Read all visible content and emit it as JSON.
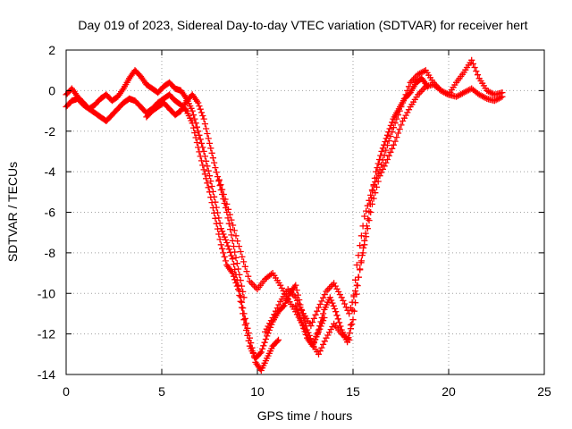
{
  "chart_data": {
    "type": "scatter",
    "title": "Day 019 of 2023, Sidereal Day-to-day VTEC variation (SDTVAR) for receiver hert",
    "xlabel": "GPS time / hours",
    "ylabel": "SDTVAR / TECUs",
    "xlim": [
      0,
      25
    ],
    "ylim": [
      -14,
      2
    ],
    "xticks": [
      0,
      5,
      10,
      15,
      20,
      25
    ],
    "yticks": [
      -14,
      -12,
      -10,
      -8,
      -6,
      -4,
      -2,
      0,
      2
    ],
    "grid": true,
    "marker": "+",
    "color": "#ff0000",
    "series": [
      {
        "x": [
          0.0,
          0.3,
          0.6,
          0.9,
          1.2,
          1.5,
          1.8,
          2.1,
          2.4,
          2.7,
          3.0,
          3.3,
          3.6,
          3.9,
          4.2,
          4.5,
          4.8,
          5.1,
          5.4,
          5.7,
          6.0,
          6.3,
          6.6,
          6.9,
          7.2,
          7.5,
          7.8,
          8.1,
          8.4,
          8.7,
          9.0,
          9.3,
          9.6,
          9.9,
          10.2,
          10.5,
          10.8,
          11.1
        ],
        "y": [
          -0.2,
          0.1,
          -0.3,
          -0.6,
          -0.9,
          -0.7,
          -0.4,
          -0.2,
          -0.5,
          -0.3,
          0.1,
          0.6,
          1.0,
          0.7,
          0.3,
          0.1,
          -0.1,
          0.2,
          0.4,
          0.1,
          0.0,
          -0.4,
          -1.0,
          -2.0,
          -3.0,
          -4.2,
          -5.5,
          -6.8,
          -7.5,
          -8.3,
          -9.6,
          -11.0,
          -12.2,
          -13.4,
          -13.8,
          -13.2,
          -12.6,
          -12.3
        ]
      },
      {
        "x": [
          0.0,
          0.3,
          0.6,
          0.9,
          1.2,
          1.5,
          1.8,
          2.1,
          2.4,
          2.7,
          3.0,
          3.3,
          3.6,
          3.9,
          4.2,
          4.5,
          4.8,
          5.1,
          5.4,
          5.7,
          6.0,
          6.3,
          6.6,
          6.9,
          7.2,
          7.5,
          7.8,
          8.1,
          8.4,
          8.7,
          9.0,
          9.3,
          9.6,
          9.9,
          10.2,
          10.5,
          10.8,
          11.1,
          11.4,
          11.7,
          12.0,
          12.3,
          12.6,
          12.9,
          13.2,
          13.5
        ],
        "y": [
          -0.8,
          -0.5,
          -0.4,
          -0.7,
          -0.9,
          -1.1,
          -1.3,
          -1.5,
          -1.2,
          -0.9,
          -0.6,
          -0.4,
          -0.5,
          -0.8,
          -1.1,
          -0.9,
          -0.6,
          -0.4,
          -0.2,
          -0.5,
          -0.7,
          -1.0,
          -1.6,
          -2.8,
          -3.9,
          -5.0,
          -6.3,
          -7.6,
          -8.6,
          -9.0,
          -9.8,
          -11.3,
          -12.6,
          -13.2,
          -12.9,
          -12.1,
          -11.4,
          -10.9,
          -10.6,
          -10.0,
          -9.6,
          -10.8,
          -11.8,
          -12.5,
          -11.9,
          -11.2
        ]
      },
      {
        "x": [
          4.2,
          4.5,
          4.8,
          5.1,
          5.4,
          5.7,
          6.0,
          6.3,
          6.6,
          6.9,
          7.2,
          7.5,
          7.8,
          8.1,
          8.4,
          8.7,
          9.0,
          9.3
        ],
        "y": [
          -1.3,
          -1.0,
          -0.8,
          -0.6,
          -0.9,
          -1.2,
          -1.0,
          -0.5,
          -0.2,
          -0.6,
          -1.4,
          -2.6,
          -3.8,
          -4.9,
          -6.0,
          -7.4,
          -8.8,
          -10.2
        ]
      },
      {
        "x": [
          8.0,
          8.4,
          8.8,
          9.2,
          9.6,
          10.0,
          10.4,
          10.8,
          11.2,
          11.6,
          12.0,
          12.4,
          12.8,
          13.2,
          13.6,
          14.0,
          14.4,
          14.8,
          15.2,
          15.6,
          16.0,
          16.4,
          16.8,
          17.2,
          17.6,
          18.0,
          18.4,
          18.8,
          19.2,
          19.6,
          20.0,
          20.4,
          20.8,
          21.2,
          21.6,
          22.0,
          22.4,
          22.8
        ],
        "y": [
          -4.4,
          -5.6,
          -6.9,
          -8.2,
          -9.4,
          -9.8,
          -9.3,
          -9.0,
          -9.6,
          -10.3,
          -10.9,
          -11.6,
          -12.4,
          -13.0,
          -12.2,
          -11.5,
          -12.0,
          -12.3,
          -8.6,
          -6.2,
          -4.9,
          -3.9,
          -2.7,
          -1.6,
          -0.6,
          0.4,
          0.8,
          1.0,
          0.4,
          0.0,
          -0.2,
          0.4,
          0.9,
          1.5,
          0.6,
          0.0,
          -0.2,
          -0.1
        ]
      },
      {
        "x": [
          10.4,
          10.8,
          11.2,
          11.6,
          12.0,
          12.4,
          12.8,
          13.2,
          13.6,
          14.0,
          14.4,
          14.8,
          15.2,
          15.6,
          16.0,
          16.4,
          16.8,
          17.2,
          17.6,
          18.0,
          18.4,
          18.8,
          19.2,
          19.6,
          20.0,
          20.4,
          20.8,
          21.2,
          21.6,
          22.0,
          22.4,
          22.8
        ],
        "y": [
          -11.9,
          -11.2,
          -10.4,
          -9.8,
          -10.2,
          -11.0,
          -11.6,
          -10.7,
          -9.9,
          -9.5,
          -10.2,
          -11.0,
          -9.6,
          -7.6,
          -5.6,
          -4.2,
          -3.4,
          -2.5,
          -1.5,
          -0.8,
          -0.2,
          0.2,
          0.3,
          0.0,
          -0.2,
          -0.3,
          -0.1,
          0.1,
          -0.2,
          -0.4,
          -0.5,
          -0.3
        ]
      },
      {
        "x": [
          12.0,
          12.3,
          12.6,
          12.9,
          13.2,
          13.5,
          13.8,
          14.1,
          14.4,
          14.7,
          15.0,
          15.3,
          15.6,
          15.9,
          16.2,
          16.5,
          16.8,
          17.1,
          17.4,
          17.7,
          18.0,
          18.3,
          18.6,
          18.9
        ],
        "y": [
          -10.6,
          -11.4,
          -12.2,
          -12.6,
          -11.8,
          -10.8,
          -10.2,
          -10.9,
          -11.8,
          -12.4,
          -11.3,
          -9.2,
          -7.4,
          -5.6,
          -4.0,
          -3.0,
          -2.2,
          -1.4,
          -0.9,
          -0.4,
          -0.1,
          0.4,
          0.6,
          0.2
        ]
      }
    ]
  }
}
